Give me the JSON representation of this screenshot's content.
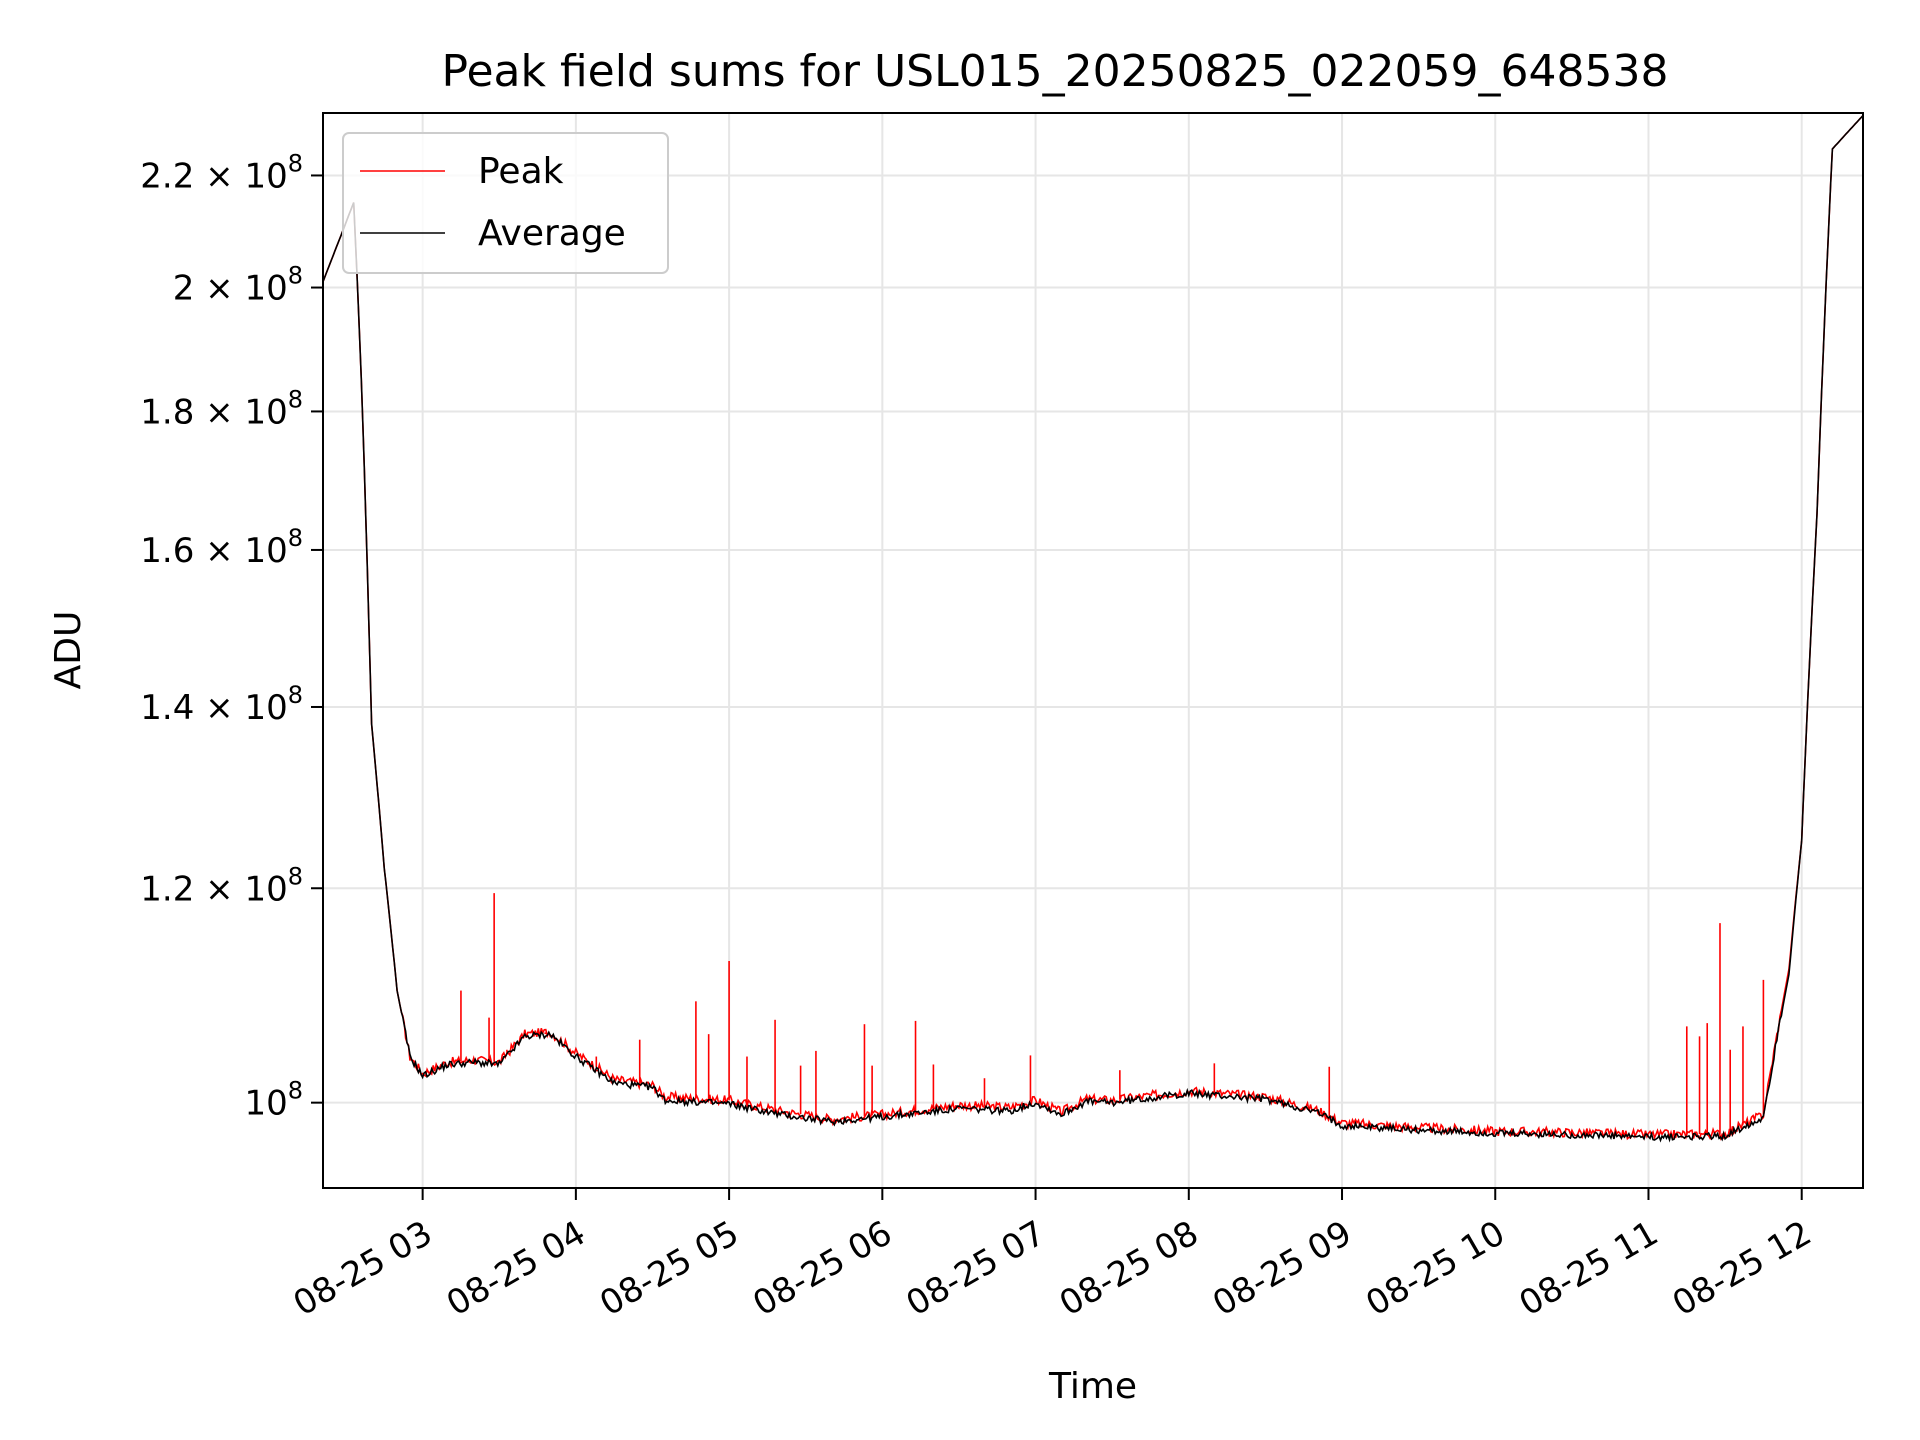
{
  "chart_data": {
    "type": "line",
    "title": "Peak field sums for USL015_20250825_022059_648538",
    "xlabel": "Time",
    "ylabel": "ADU",
    "yscale": "log",
    "ylim": [
      93000000,
      232000000
    ],
    "xlim": [
      "2025-08-25 02:20:59",
      "2025-08-25 12:24:00"
    ],
    "grid": true,
    "legend_placement": "top-left",
    "x_ticks": [
      {
        "t": "2025-08-25 03:00",
        "label": "08-25 03"
      },
      {
        "t": "2025-08-25 04:00",
        "label": "08-25 04"
      },
      {
        "t": "2025-08-25 05:00",
        "label": "08-25 05"
      },
      {
        "t": "2025-08-25 06:00",
        "label": "08-25 06"
      },
      {
        "t": "2025-08-25 07:00",
        "label": "08-25 07"
      },
      {
        "t": "2025-08-25 08:00",
        "label": "08-25 08"
      },
      {
        "t": "2025-08-25 09:00",
        "label": "08-25 09"
      },
      {
        "t": "2025-08-25 10:00",
        "label": "08-25 10"
      },
      {
        "t": "2025-08-25 11:00",
        "label": "08-25 11"
      },
      {
        "t": "2025-08-25 12:00",
        "label": "08-25 12"
      }
    ],
    "y_ticks": [
      {
        "value": 100000000,
        "base": "10",
        "exp": "8"
      },
      {
        "value": 120000000,
        "mantissa": "1.2",
        "exp": "8"
      },
      {
        "value": 140000000,
        "mantissa": "1.4",
        "exp": "8"
      },
      {
        "value": 160000000,
        "mantissa": "1.6",
        "exp": "8"
      },
      {
        "value": 180000000,
        "mantissa": "1.8",
        "exp": "8"
      },
      {
        "value": 200000000,
        "mantissa": "2",
        "exp": "8"
      },
      {
        "value": 220000000,
        "mantissa": "2.2",
        "exp": "8"
      }
    ],
    "series": [
      {
        "name": "Peak",
        "color": "#ff0000",
        "points": [
          [
            "2025-08-25 02:20:59",
            201000000
          ],
          [
            "2025-08-25 02:28:00",
            209000000
          ],
          [
            "2025-08-25 02:33:00",
            215000000
          ],
          [
            "2025-08-25 02:36:00",
            185000000
          ],
          [
            "2025-08-25 02:40:00",
            138000000
          ],
          [
            "2025-08-25 02:45:00",
            122000000
          ],
          [
            "2025-08-25 02:50:00",
            110000000
          ],
          [
            "2025-08-25 02:55:00",
            104000000
          ],
          [
            "2025-08-25 03:00:00",
            102500000
          ],
          [
            "2025-08-25 03:10:00",
            103500000
          ],
          [
            "2025-08-25 03:20:00",
            103700000
          ],
          [
            "2025-08-25 03:30:00",
            103500000
          ],
          [
            "2025-08-25 03:40:00",
            106000000
          ],
          [
            "2025-08-25 03:50:00",
            106200000
          ],
          [
            "2025-08-25 04:00:00",
            104300000
          ],
          [
            "2025-08-25 04:15:00",
            102000000
          ],
          [
            "2025-08-25 04:30:00",
            101500000
          ],
          [
            "2025-08-25 04:35:00",
            100500000
          ],
          [
            "2025-08-25 05:00:00",
            100200000
          ],
          [
            "2025-08-25 05:20:00",
            99300000
          ],
          [
            "2025-08-25 05:40:00",
            98600000
          ],
          [
            "2025-08-25 06:00:00",
            99000000
          ],
          [
            "2025-08-25 06:30:00",
            99800000
          ],
          [
            "2025-08-25 06:50:00",
            99600000
          ],
          [
            "2025-08-25 07:00:00",
            100200000
          ],
          [
            "2025-08-25 07:10:00",
            99200000
          ],
          [
            "2025-08-25 07:20:00",
            100300000
          ],
          [
            "2025-08-25 07:30:00",
            100200000
          ],
          [
            "2025-08-25 08:00:00",
            101000000
          ],
          [
            "2025-08-25 08:30:00",
            100500000
          ],
          [
            "2025-08-25 08:50:00",
            99400000
          ],
          [
            "2025-08-25 09:00:00",
            98300000
          ],
          [
            "2025-08-25 09:30:00",
            97900000
          ],
          [
            "2025-08-25 10:00:00",
            97600000
          ],
          [
            "2025-08-25 10:30:00",
            97500000
          ],
          [
            "2025-08-25 11:00:00",
            97300000
          ],
          [
            "2025-08-25 11:30:00",
            97400000
          ],
          [
            "2025-08-25 11:45:00",
            99000000
          ],
          [
            "2025-08-25 11:55:00",
            112000000
          ],
          [
            "2025-08-25 12:00:00",
            125000000
          ],
          [
            "2025-08-25 12:06:00",
            165000000
          ],
          [
            "2025-08-25 12:12:00",
            225000000
          ],
          [
            "2025-08-25 12:24:00",
            231500000
          ]
        ],
        "spikes": [
          [
            "2025-08-25 03:15:00",
            110000000
          ],
          [
            "2025-08-25 03:26:00",
            107500000
          ],
          [
            "2025-08-25 03:28:00",
            119500000
          ],
          [
            "2025-08-25 03:33:00",
            104600000
          ],
          [
            "2025-08-25 03:48:00",
            106000000
          ],
          [
            "2025-08-25 04:08:00",
            104000000
          ],
          [
            "2025-08-25 04:25:00",
            105500000
          ],
          [
            "2025-08-25 04:47:00",
            109000000
          ],
          [
            "2025-08-25 04:52:00",
            106000000
          ],
          [
            "2025-08-25 05:00:00",
            112800000
          ],
          [
            "2025-08-25 05:07:00",
            104000000
          ],
          [
            "2025-08-25 05:18:00",
            107300000
          ],
          [
            "2025-08-25 05:28:00",
            103200000
          ],
          [
            "2025-08-25 05:34:00",
            104500000
          ],
          [
            "2025-08-25 05:53:00",
            106900000
          ],
          [
            "2025-08-25 05:56:00",
            103200000
          ],
          [
            "2025-08-25 06:13:00",
            107200000
          ],
          [
            "2025-08-25 06:20:00",
            103300000
          ],
          [
            "2025-08-25 06:40:00",
            102100000
          ],
          [
            "2025-08-25 06:58:00",
            104100000
          ],
          [
            "2025-08-25 07:33:00",
            102800000
          ],
          [
            "2025-08-25 08:10:00",
            103400000
          ],
          [
            "2025-08-25 08:55:00",
            103100000
          ],
          [
            "2025-08-25 11:15:00",
            106700000
          ],
          [
            "2025-08-25 11:20:00",
            105800000
          ],
          [
            "2025-08-25 11:23:00",
            107000000
          ],
          [
            "2025-08-25 11:28:00",
            116500000
          ],
          [
            "2025-08-25 11:32:00",
            104600000
          ],
          [
            "2025-08-25 11:37:00",
            106700000
          ],
          [
            "2025-08-25 11:45:00",
            111000000
          ]
        ]
      },
      {
        "name": "Average",
        "color": "#000000",
        "points": [
          [
            "2025-08-25 02:20:59",
            201000000
          ],
          [
            "2025-08-25 02:28:00",
            209000000
          ],
          [
            "2025-08-25 02:33:00",
            215000000
          ],
          [
            "2025-08-25 02:36:00",
            185000000
          ],
          [
            "2025-08-25 02:40:00",
            138000000
          ],
          [
            "2025-08-25 02:45:00",
            122000000
          ],
          [
            "2025-08-25 02:50:00",
            110000000
          ],
          [
            "2025-08-25 02:55:00",
            104000000
          ],
          [
            "2025-08-25 03:00:00",
            102300000
          ],
          [
            "2025-08-25 03:10:00",
            103300000
          ],
          [
            "2025-08-25 03:20:00",
            103500000
          ],
          [
            "2025-08-25 03:30:00",
            103300000
          ],
          [
            "2025-08-25 03:40:00",
            105800000
          ],
          [
            "2025-08-25 03:50:00",
            106000000
          ],
          [
            "2025-08-25 04:00:00",
            104000000
          ],
          [
            "2025-08-25 04:15:00",
            101700000
          ],
          [
            "2025-08-25 04:30:00",
            101300000
          ],
          [
            "2025-08-25 04:35:00",
            100200000
          ],
          [
            "2025-08-25 05:00:00",
            99900000
          ],
          [
            "2025-08-25 05:20:00",
            99000000
          ],
          [
            "2025-08-25 05:40:00",
            98400000
          ],
          [
            "2025-08-25 06:00:00",
            98800000
          ],
          [
            "2025-08-25 06:30:00",
            99500000
          ],
          [
            "2025-08-25 06:50:00",
            99300000
          ],
          [
            "2025-08-25 07:00:00",
            100000000
          ],
          [
            "2025-08-25 07:10:00",
            99000000
          ],
          [
            "2025-08-25 07:20:00",
            100100000
          ],
          [
            "2025-08-25 07:30:00",
            100000000
          ],
          [
            "2025-08-25 08:00:00",
            100800000
          ],
          [
            "2025-08-25 08:30:00",
            100300000
          ],
          [
            "2025-08-25 08:50:00",
            99200000
          ],
          [
            "2025-08-25 09:00:00",
            98100000
          ],
          [
            "2025-08-25 09:30:00",
            97700000
          ],
          [
            "2025-08-25 10:00:00",
            97400000
          ],
          [
            "2025-08-25 10:30:00",
            97300000
          ],
          [
            "2025-08-25 11:00:00",
            97100000
          ],
          [
            "2025-08-25 11:30:00",
            97200000
          ],
          [
            "2025-08-25 11:45:00",
            98800000
          ],
          [
            "2025-08-25 11:55:00",
            111500000
          ],
          [
            "2025-08-25 12:00:00",
            125000000
          ],
          [
            "2025-08-25 12:06:00",
            165000000
          ],
          [
            "2025-08-25 12:12:00",
            225000000
          ],
          [
            "2025-08-25 12:24:00",
            231500000
          ]
        ]
      }
    ]
  }
}
